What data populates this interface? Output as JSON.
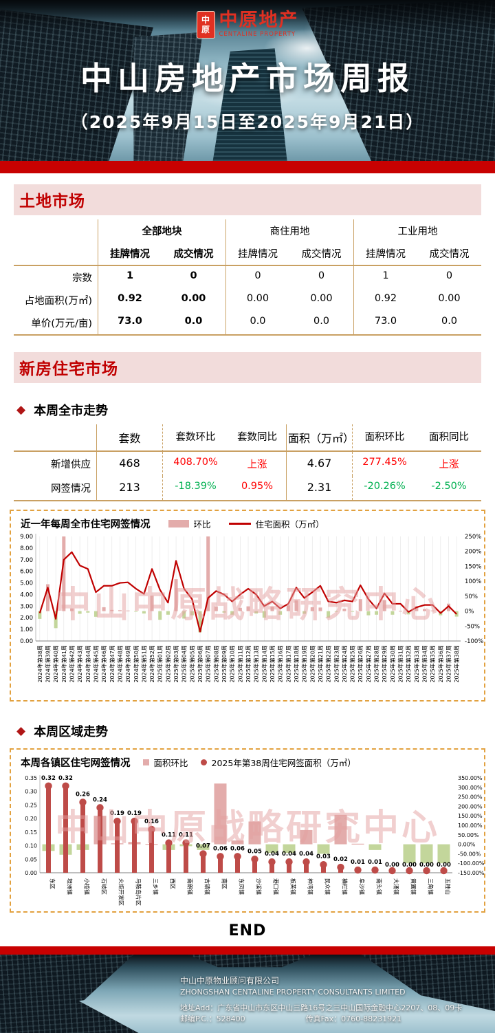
{
  "header": {
    "logo": {
      "seal_top": "中",
      "seal_bottom": "原",
      "name_cn": "中原地产",
      "name_en": "CENTALINE PROPERTY"
    },
    "title": "中山房地产市场周报",
    "subtitle": "（2025年9月15日至2025年9月21日）"
  },
  "land_market": {
    "banner": "土地市场",
    "groups": [
      "全部地块",
      "商住用地",
      "工业用地"
    ],
    "subheaders": [
      "挂牌情况",
      "成交情况",
      "挂牌情况",
      "成交情况",
      "挂牌情况",
      "成交情况"
    ],
    "rows": [
      {
        "label": "宗数",
        "values": [
          "1",
          "0",
          "0",
          "0",
          "1",
          "0"
        ]
      },
      {
        "label": "占地面积(万㎡)",
        "values": [
          "0.92",
          "0.00",
          "0.00",
          "0.00",
          "0.92",
          "0.00"
        ]
      },
      {
        "label": "单价(万元/亩)",
        "values": [
          "73.0",
          "0.0",
          "0.0",
          "0.0",
          "73.0",
          "0.0"
        ]
      }
    ]
  },
  "housing": {
    "banner": "新房住宅市场",
    "weekly_section_title": "本周全市走势",
    "regional_section_title": "本周区域走势",
    "weekly_table": {
      "headers": [
        "",
        "套数",
        "套数环比",
        "套数同比",
        "面积（万㎡）",
        "面积环比",
        "面积同比"
      ],
      "rows": [
        {
          "label": "新增供应",
          "cells": [
            {
              "v": "468",
              "c": "black"
            },
            {
              "v": "408.70%",
              "c": "red"
            },
            {
              "v": "上涨",
              "c": "red"
            },
            {
              "v": "4.67",
              "c": "black"
            },
            {
              "v": "277.45%",
              "c": "red"
            },
            {
              "v": "上涨",
              "c": "red"
            }
          ]
        },
        {
          "label": "网签情况",
          "cells": [
            {
              "v": "213",
              "c": "black"
            },
            {
              "v": "-18.39%",
              "c": "green"
            },
            {
              "v": "0.95%",
              "c": "red"
            },
            {
              "v": "2.31",
              "c": "black"
            },
            {
              "v": "-20.26%",
              "c": "green"
            },
            {
              "v": "-2.50%",
              "c": "green"
            }
          ]
        }
      ]
    }
  },
  "watermark": "中山中原战略研究中心",
  "end_label": "END",
  "footer": {
    "company_cn": "中山中原物业顾问有限公司",
    "company_en": "ZHONGSHAN CENTALINE PROPERTY CONSULTANTS LIMITED",
    "address": "地址Add：广东省中山市东区中山三路16号之三中山国际金融中心2207、08、09卡",
    "postcode": "邮编P.C.：528400",
    "fax": "传真Fax：0760-88231921"
  },
  "chart_data": [
    {
      "type": "bar",
      "subtype": "combo-bar-line",
      "title": "近一年每周全市住宅网签情况",
      "legend": [
        "环比",
        "住宅面积（万㎡）"
      ],
      "legend_position": "top",
      "grid": "category-droplines",
      "categories": [
        "2024年第38周",
        "2024年第39周",
        "2024年第40周",
        "2024年第41周",
        "2024年第42周",
        "2024年第43周",
        "2024年第44周",
        "2024年第45周",
        "2024年第46周",
        "2024年第47周",
        "2024年第48周",
        "2024年第49周",
        "2024年第50周",
        "2024年第51周",
        "2024年第52周",
        "2025年第01周",
        "2025年第02周",
        "2025年第03周",
        "2025年第04周",
        "2025年第05周",
        "2025年第06周",
        "2025年第07周",
        "2025年第08周",
        "2025年第09周",
        "2025年第10周",
        "2025年第11周",
        "2025年第12周",
        "2025年第13周",
        "2025年第14周",
        "2025年第15周",
        "2025年第16周",
        "2025年第17周",
        "2025年第18周",
        "2025年第19周",
        "2025年第20周",
        "2025年第21周",
        "2025年第22周",
        "2025年第23周",
        "2025年第24周",
        "2025年第25周",
        "2025年第26周",
        "2025年第27周",
        "2025年第28周",
        "2025年第29周",
        "2025年第30周",
        "2025年第31周",
        "2025年第32周",
        "2025年第33周",
        "2025年第34周",
        "2025年第35周",
        "2025年第36周",
        "2025年第37周",
        "2025年第38周"
      ],
      "series": [
        {
          "name": "环比",
          "type": "bar",
          "axis": "right",
          "unit": "%",
          "values": [
            -26,
            90,
            -57,
            250,
            9,
            -9,
            -5,
            -19,
            13,
            4,
            3,
            2,
            -2,
            -8,
            52,
            -29,
            -12,
            107,
            -25,
            -14,
            -71,
            250,
            16,
            -5,
            -12,
            11,
            16,
            -8,
            -22,
            15,
            -12,
            19,
            36,
            -9,
            13,
            12,
            -22,
            -2,
            8,
            -1,
            40,
            -14,
            -12,
            37,
            -12,
            1,
            -11,
            16,
            7,
            2,
            -14,
            25,
            -18.39
          ]
        },
        {
          "name": "住宅面积（万㎡）",
          "type": "line",
          "axis": "left",
          "values": [
            2.4,
            4.6,
            1.9,
            7.0,
            7.65,
            6.5,
            6.2,
            4.2,
            4.75,
            4.75,
            5.0,
            5.05,
            4.5,
            4.05,
            6.2,
            4.4,
            3.3,
            6.9,
            4.5,
            3.6,
            0.8,
            3.7,
            4.3,
            4.0,
            3.4,
            4.0,
            4.5,
            4.0,
            3.0,
            3.4,
            2.8,
            3.2,
            4.6,
            3.7,
            4.2,
            4.75,
            3.4,
            3.3,
            3.5,
            3.4,
            4.8,
            3.6,
            2.8,
            4.1,
            3.2,
            3.2,
            2.5,
            2.9,
            3.1,
            3.1,
            2.4,
            3.0,
            2.31
          ]
        }
      ],
      "left_axis": {
        "min": 0,
        "max": 9,
        "step": 1,
        "format": "0.00"
      },
      "right_axis": {
        "min": -100,
        "max": 250,
        "step": 50,
        "format": "0%"
      },
      "colors": {
        "bar_positive": "#e3acab",
        "bar_negative": "#c3d69b",
        "line": "#c00000"
      }
    },
    {
      "type": "bar",
      "subtype": "combo-bar-lollipop",
      "title": "本周各镇区住宅网签情况",
      "legend": [
        "面积环比",
        "2025年第38周住宅网签面积（万㎡）"
      ],
      "legend_position": "top",
      "grid": "off",
      "categories": [
        "东区",
        "坦洲镇",
        "小榄镇",
        "石岐区",
        "火炬开发区",
        "马鞍岛片区",
        "三乡镇",
        "西区",
        "南朗镇",
        "古镇镇",
        "南区",
        "东凤镇",
        "沙溪镇",
        "港口镇",
        "板芙镇",
        "神湾镇",
        "民众镇",
        "横栏镇",
        "阜沙镇",
        "南头镇",
        "大涌镇",
        "黄圃镇",
        "三角镇",
        "五桂山"
      ],
      "series": [
        {
          "name": "面积环比",
          "type": "bar",
          "axis": "right",
          "unit": "%",
          "values": [
            -35,
            -55,
            -30,
            150,
            5,
            12,
            2,
            -30,
            -10,
            -30,
            320,
            20,
            120,
            -45,
            -45,
            75,
            -50,
            155,
            3,
            -30,
            0,
            -100,
            -100,
            -100
          ]
        },
        {
          "name": "2025年第38周住宅网签面积（万㎡）",
          "type": "lollipop",
          "axis": "left",
          "values": [
            0.32,
            0.32,
            0.26,
            0.24,
            0.19,
            0.19,
            0.16,
            0.11,
            0.11,
            0.07,
            0.06,
            0.06,
            0.05,
            0.04,
            0.04,
            0.04,
            0.03,
            0.02,
            0.01,
            0.01,
            0,
            0,
            0,
            0
          ],
          "data_labels": [
            "0.32",
            "0.32",
            "0.26",
            "0.24",
            "0.19",
            "0.19",
            "0.16",
            "0.11",
            "0.11",
            "0.07",
            "0.06",
            "0.06",
            "0.05",
            "0.04",
            "0.04",
            "0.04",
            "0.03",
            "0.02",
            "0.01",
            "0.01",
            "0.00",
            "0.00",
            "0.00",
            "0.00"
          ]
        }
      ],
      "left_axis": {
        "min": 0,
        "max": 0.35,
        "step": 0.05,
        "format": "0.00"
      },
      "right_axis": {
        "min": -150,
        "max": 350,
        "step": 50,
        "format": "0.00%"
      },
      "colors": {
        "bar_positive": "#e3acab",
        "bar_negative": "#c3d69b",
        "lollipop": "#be4b48"
      }
    }
  ]
}
